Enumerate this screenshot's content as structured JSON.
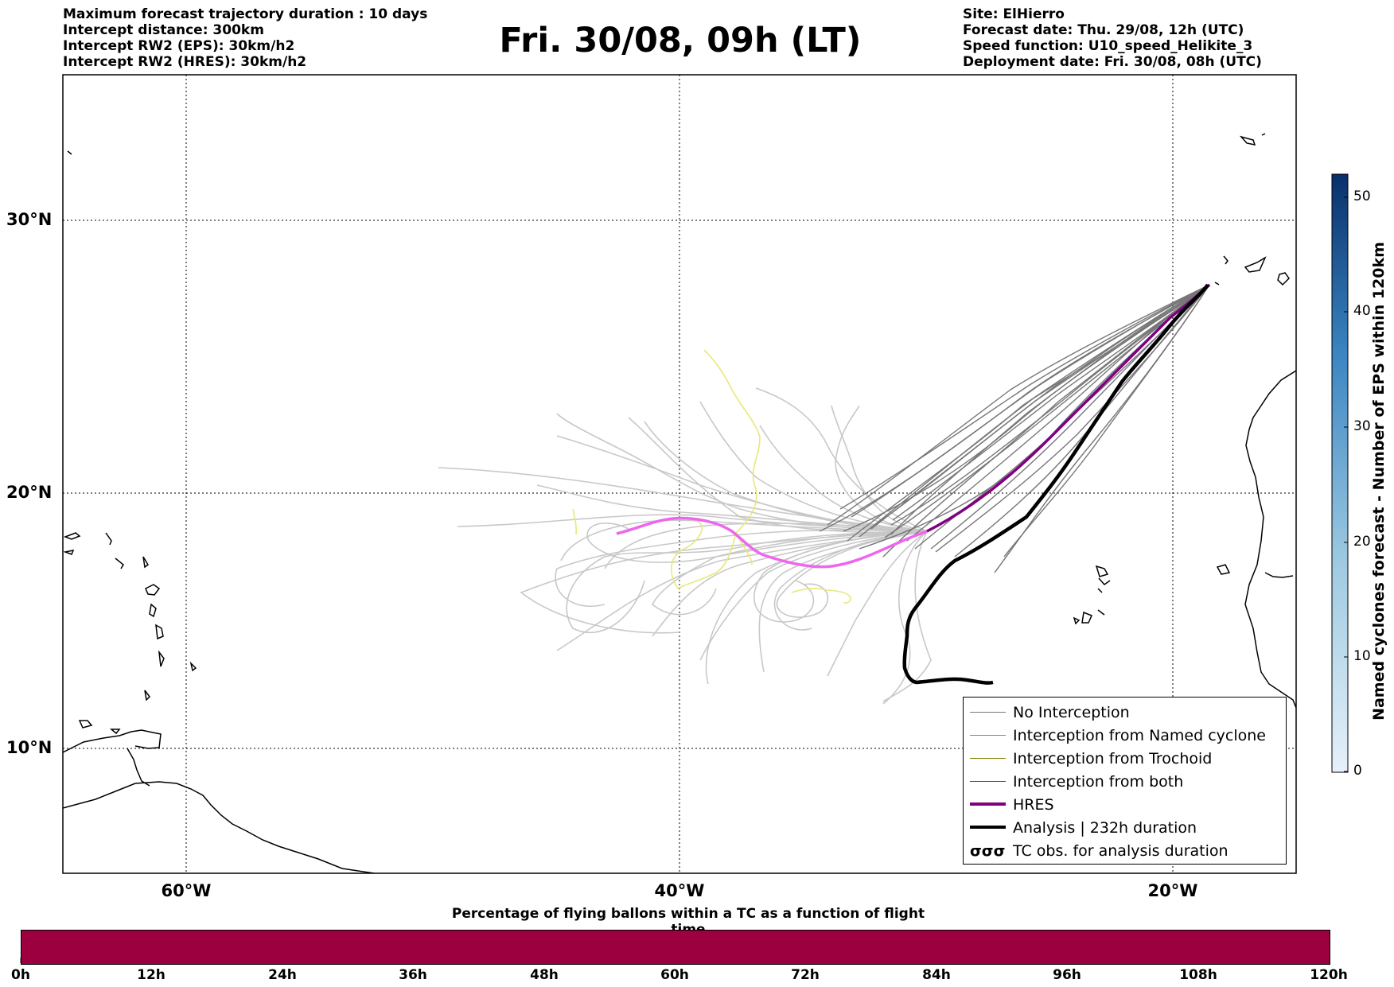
{
  "header": {
    "left": [
      "Maximum forecast trajectory duration : 10 days",
      "Intercept distance: 300km",
      "Intercept RW2 (EPS):  30km/h2",
      "Intercept RW2 (HRES): 30km/h2"
    ],
    "title": "Fri. 30/08, 09h (LT)",
    "right": [
      "Site: ElHierro",
      "Forecast date: Thu. 29/08, 12h (UTC)",
      "Speed function: U10_speed_Helikite_3",
      "Deployment date: Fri. 30/08, 08h (UTC)"
    ]
  },
  "map": {
    "lat_labels": [
      "30°N",
      "20°N",
      "10°N"
    ],
    "lon_labels": [
      "60°W",
      "40°W",
      "20°W"
    ],
    "colors": {
      "no_interception": "#777777",
      "named_cyclone": "#ff5a00",
      "trochoid": "#808000",
      "both": "#008000",
      "hres": "#800080",
      "analysis": "#000000",
      "eps_light": "#c8c8c8",
      "hres_light": "#ee66ee",
      "yellow": "#e8e87a"
    }
  },
  "legend": {
    "items": [
      {
        "label": "No Interception",
        "icon": "gray-line"
      },
      {
        "label": "Interception from Named cyclone",
        "icon": "orange-line"
      },
      {
        "label": "Interception from Trochoid",
        "icon": "olive-line"
      },
      {
        "label": "Interception from both",
        "icon": "green-line"
      },
      {
        "label": "HRES",
        "icon": "purple-thick-line"
      },
      {
        "label": "Analysis | 232h duration",
        "icon": "black-thick-line"
      },
      {
        "label": "TC obs. for analysis duration",
        "icon": "cyclone-symbols"
      }
    ],
    "cyclone_glyph": "σσσ"
  },
  "colorbar_right": {
    "label": "Named cyclones forecast - Number of EPS within 120km",
    "ticks": [
      "50",
      "40",
      "30",
      "20",
      "10",
      "0"
    ],
    "top_color": "#08306b",
    "bottom_color": "#e6f0fa"
  },
  "colorbar_bottom": {
    "title": "Percentage of flying ballons within a TC as a function of flight time",
    "color": "#9c003e",
    "ticks": [
      "0h",
      "12h",
      "24h",
      "36h",
      "48h",
      "60h",
      "72h",
      "84h",
      "96h",
      "108h",
      "120h"
    ]
  }
}
